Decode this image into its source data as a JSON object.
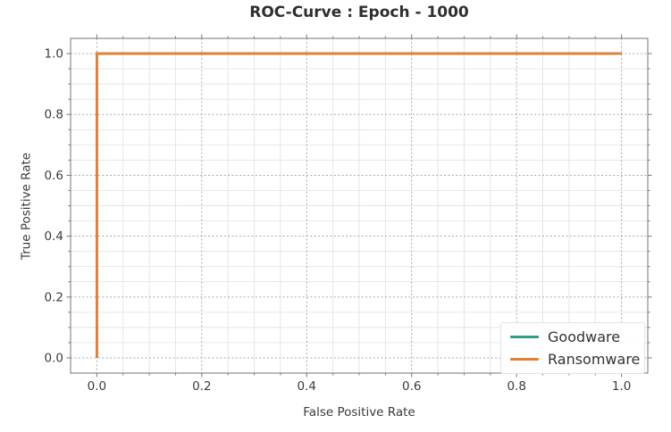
{
  "figure": {
    "background": "#ffffff",
    "spine_color": "#808080",
    "major_grid_color": "#9e9e9e",
    "minor_grid_color": "#e4e4e4",
    "tick_mark_color": "#777777",
    "text_color": "#3b3b3b"
  },
  "chart_data": {
    "type": "line",
    "title": "ROC-Curve : Epoch - 1000",
    "xlabel": "False Positive Rate",
    "ylabel": "True Positive Rate",
    "xlim": [
      -0.05,
      1.05
    ],
    "ylim": [
      -0.05,
      1.05
    ],
    "x_ticks": [
      0.0,
      0.2,
      0.4,
      0.6,
      0.8,
      1.0
    ],
    "x_tick_labels": [
      "0.0",
      "0.2",
      "0.4",
      "0.6",
      "0.8",
      "1.0"
    ],
    "y_ticks": [
      0.0,
      0.2,
      0.4,
      0.6,
      0.8,
      1.0
    ],
    "y_tick_labels": [
      "0.0",
      "0.2",
      "0.4",
      "0.6",
      "0.8",
      "1.0"
    ],
    "minor_tick_step": 0.05,
    "grid": {
      "major": "dashed",
      "minor": "solid"
    },
    "legend": {
      "position": "lower right"
    },
    "series": [
      {
        "name": "Goodware",
        "color": "#2c9e86",
        "points": [
          [
            0,
            0
          ],
          [
            0,
            1
          ],
          [
            1,
            1
          ]
        ]
      },
      {
        "name": "Ransomware",
        "color": "#e87e2e",
        "points": [
          [
            0,
            0
          ],
          [
            0,
            1
          ],
          [
            1,
            1
          ]
        ]
      }
    ]
  }
}
